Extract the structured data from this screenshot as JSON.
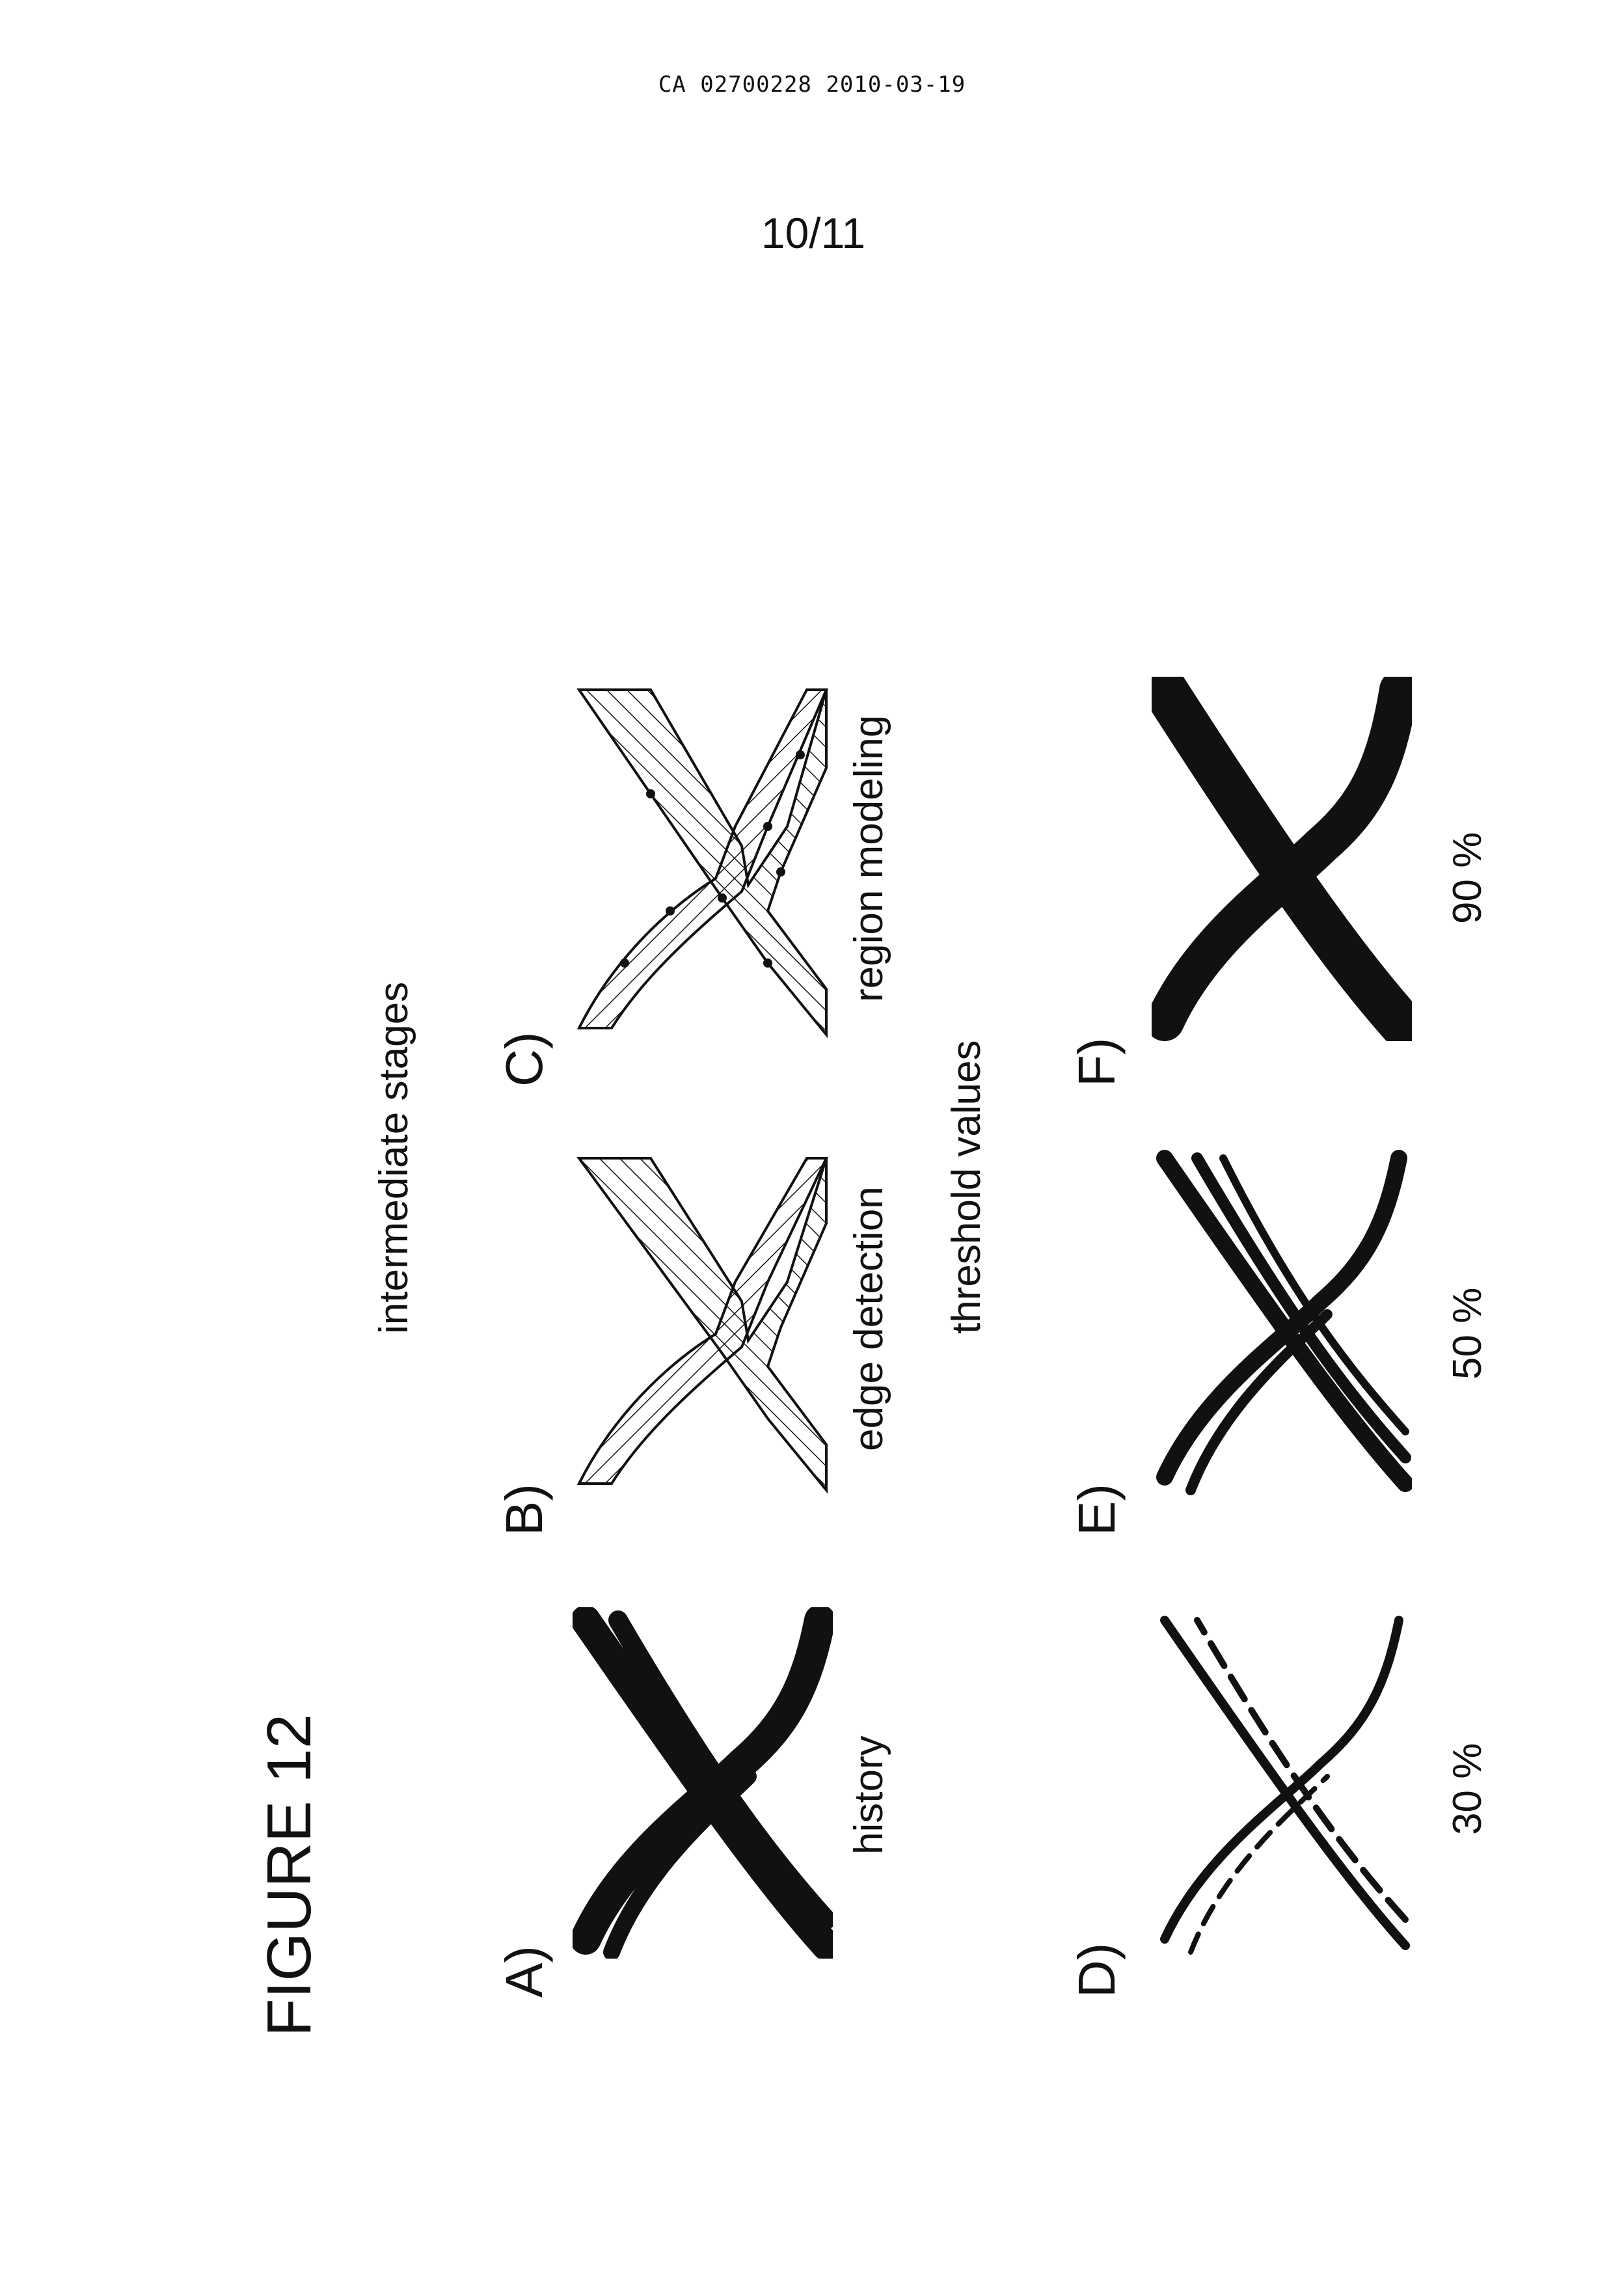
{
  "header": {
    "document_id": "CA 02700228 2010-03-19",
    "page": "10/11"
  },
  "figure": {
    "title": "FIGURE 12",
    "intermediate_group_title": "intermediate stages",
    "threshold_group_title": "threshold values",
    "panels": [
      {
        "letter": "A)",
        "caption": "history"
      },
      {
        "letter": "B)",
        "caption": "edge detection"
      },
      {
        "letter": "C)",
        "caption": "region modeling"
      },
      {
        "letter": "D)",
        "caption": "30 %"
      },
      {
        "letter": "E)",
        "caption": "50 %"
      },
      {
        "letter": "F)",
        "caption": "90 %"
      }
    ]
  },
  "colors": {
    "ink": "#111111",
    "paper": "#ffffff"
  }
}
